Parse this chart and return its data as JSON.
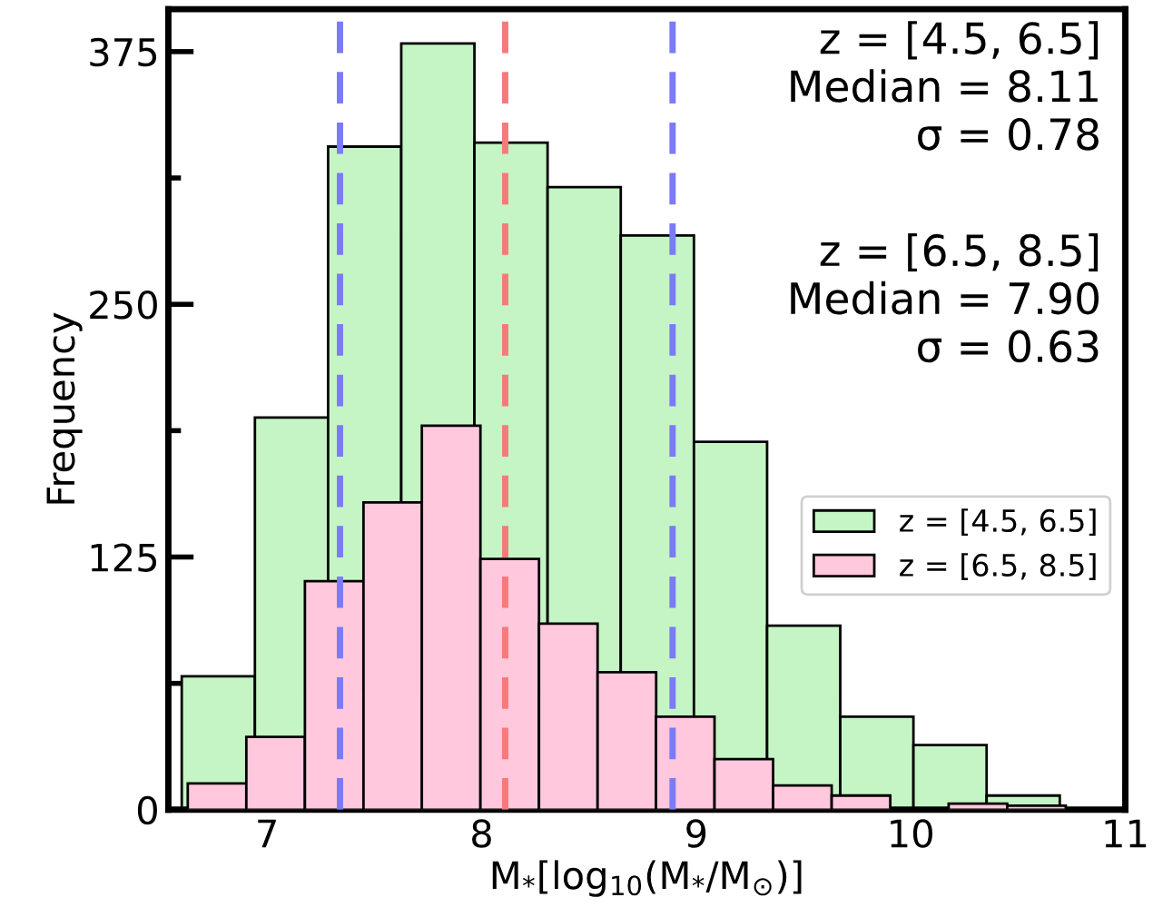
{
  "chart_data": {
    "type": "bar",
    "xlabel": "M$_{*}$[log$_{10}$(M$_{*}$/M$_{⊙}$)]",
    "ylabel": "Frequency",
    "series": [
      {
        "name": "z = [4.5, 6.5]",
        "color": "#c5f5c5",
        "x": [
          6.773,
          7.114,
          7.455,
          7.796,
          8.137,
          8.478,
          8.819,
          9.16,
          9.501,
          9.842,
          10.183,
          10.524
        ],
        "values": [
          66,
          194,
          328,
          379,
          330,
          308,
          284,
          182,
          91,
          46,
          32,
          7
        ]
      },
      {
        "name": "z = [6.5, 8.5]",
        "color": "#ffc8dc",
        "x": [
          6.767,
          7.04,
          7.313,
          7.586,
          7.858,
          8.131,
          8.404,
          8.677,
          8.949,
          9.222,
          9.495,
          9.768,
          10.04,
          10.313,
          10.586
        ],
        "values": [
          13,
          36,
          113,
          152,
          190,
          124,
          92,
          68,
          46,
          25,
          12,
          7,
          null,
          3,
          2
        ]
      }
    ],
    "ref_lines": [
      {
        "axis": "x",
        "value": 7.34,
        "color": "#7b7bf5",
        "line_style": "dashed"
      },
      {
        "axis": "x",
        "value": 8.11,
        "color": "#f57b7b",
        "line_style": "dashed"
      },
      {
        "axis": "x",
        "value": 8.89,
        "color": "#7b7bf5",
        "line_style": "dashed"
      }
    ],
    "annotations": [
      "z = [4.5, 6.5]\nMedian = 8.11\nσ = 0.78",
      "z = [6.5, 8.5]\nMedian = 7.90\nσ = 0.63"
    ],
    "xlim": [
      6.54,
      11
    ],
    "xticks": [
      7,
      8,
      9,
      10,
      11
    ],
    "ylim": [
      0,
      396
    ],
    "yticks": [
      0,
      125,
      250,
      375
    ],
    "legend": "center right"
  }
}
